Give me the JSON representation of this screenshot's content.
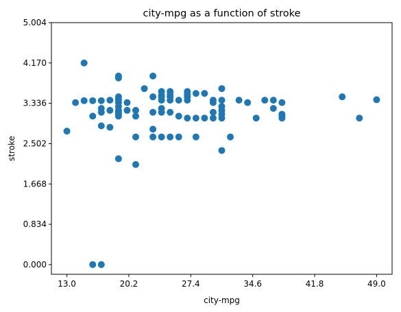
{
  "chart_data": {
    "type": "scatter",
    "title": "city-mpg as a function of stroke",
    "xlabel": "city-mpg",
    "ylabel": "stroke",
    "xlim": [
      11.2,
      50.8
    ],
    "ylim": [
      -0.2,
      5.004
    ],
    "xticks": [
      "13.0",
      "20.2",
      "27.4",
      "34.6",
      "41.8",
      "49.0"
    ],
    "yticks": [
      "0.000",
      "0.834",
      "1.668",
      "2.502",
      "3.336",
      "4.170",
      "5.004"
    ],
    "grid": false,
    "marker_color": "#1f77b4",
    "series": [
      {
        "points": [
          [
            13,
            2.76
          ],
          [
            14,
            3.35
          ],
          [
            15,
            3.39
          ],
          [
            15,
            4.17
          ],
          [
            16,
            3.39
          ],
          [
            16,
            3.07
          ],
          [
            16,
            0.0
          ],
          [
            17,
            0.0
          ],
          [
            17,
            3.39
          ],
          [
            17,
            3.23
          ],
          [
            17,
            3.15
          ],
          [
            17,
            2.87
          ],
          [
            18,
            3.4
          ],
          [
            18,
            3.19
          ],
          [
            18,
            2.84
          ],
          [
            19,
            3.86
          ],
          [
            19,
            3.9
          ],
          [
            19,
            3.47
          ],
          [
            19,
            3.41
          ],
          [
            19,
            3.35
          ],
          [
            19,
            3.27
          ],
          [
            19,
            3.19
          ],
          [
            19,
            3.15
          ],
          [
            19,
            3.11
          ],
          [
            19,
            3.07
          ],
          [
            19,
            2.19
          ],
          [
            20,
            3.35
          ],
          [
            20,
            3.19
          ],
          [
            21,
            3.19
          ],
          [
            21,
            3.07
          ],
          [
            21,
            2.64
          ],
          [
            21,
            2.07
          ],
          [
            22,
            3.64
          ],
          [
            23,
            3.9
          ],
          [
            23,
            3.47
          ],
          [
            23,
            3.15
          ],
          [
            23,
            2.8
          ],
          [
            23,
            2.64
          ],
          [
            24,
            3.58
          ],
          [
            24,
            3.5
          ],
          [
            24,
            3.47
          ],
          [
            24,
            3.4
          ],
          [
            24,
            3.23
          ],
          [
            24,
            3.15
          ],
          [
            24,
            2.64
          ],
          [
            25,
            3.58
          ],
          [
            25,
            3.52
          ],
          [
            25,
            3.47
          ],
          [
            25,
            3.4
          ],
          [
            25,
            3.15
          ],
          [
            25,
            2.64
          ],
          [
            26,
            3.4
          ],
          [
            26,
            3.07
          ],
          [
            26,
            2.64
          ],
          [
            27,
            3.58
          ],
          [
            27,
            3.52
          ],
          [
            27,
            3.47
          ],
          [
            27,
            3.4
          ],
          [
            27,
            3.03
          ],
          [
            28,
            3.54
          ],
          [
            28,
            3.03
          ],
          [
            28,
            2.64
          ],
          [
            29,
            3.54
          ],
          [
            29,
            3.03
          ],
          [
            30,
            3.4
          ],
          [
            30,
            3.35
          ],
          [
            30,
            3.15
          ],
          [
            30,
            3.03
          ],
          [
            31,
            3.64
          ],
          [
            31,
            3.4
          ],
          [
            31,
            3.27
          ],
          [
            31,
            3.19
          ],
          [
            31,
            3.11
          ],
          [
            31,
            3.03
          ],
          [
            31,
            2.36
          ],
          [
            32,
            2.64
          ],
          [
            33,
            3.4
          ],
          [
            34,
            3.35
          ],
          [
            35,
            3.03
          ],
          [
            36,
            3.4
          ],
          [
            37,
            3.4
          ],
          [
            37,
            3.23
          ],
          [
            38,
            3.35
          ],
          [
            38,
            3.11
          ],
          [
            38,
            3.07
          ],
          [
            38,
            3.03
          ],
          [
            45,
            3.47
          ],
          [
            47,
            3.03
          ],
          [
            49,
            3.41
          ]
        ]
      }
    ]
  }
}
